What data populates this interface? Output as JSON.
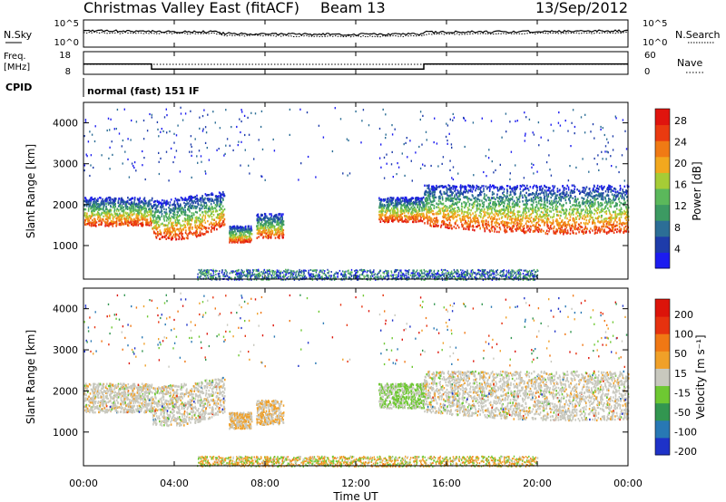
{
  "header": {
    "title": "Christmas Valley East (fitACF)",
    "beam": "Beam 13",
    "date": "13/Sep/2012"
  },
  "nsky_panel": {
    "left_label": "N.Sky",
    "right_label": "N.Search",
    "left_ticks": [
      "10^5",
      "10^0"
    ],
    "right_ticks": [
      "10^5",
      "10^0"
    ]
  },
  "freq_panel": {
    "left_label_1": "Freq.",
    "left_label_2": "[MHz]",
    "right_label": "Nave",
    "left_ticks": [
      "18",
      "8"
    ],
    "right_ticks": [
      "60",
      "0"
    ]
  },
  "cpid": {
    "label": "CPID",
    "value": "normal (fast) 151 IF"
  },
  "x_axis": {
    "title": "Time UT",
    "ticks": [
      "00:00",
      "04:00",
      "08:00",
      "12:00",
      "16:00",
      "20:00",
      "00:00"
    ]
  },
  "power_panel": {
    "ylabel": "Slant Range [km]",
    "yticks": [
      "1000",
      "2000",
      "3000",
      "4000"
    ],
    "colorbar_label": "Power [dB]",
    "colorbar_ticks": [
      "4",
      "8",
      "12",
      "16",
      "20",
      "24",
      "28"
    ],
    "colorbar_colors": [
      "#1c1cf0",
      "#1e3caa",
      "#2c6e96",
      "#3c9a62",
      "#5bb85b",
      "#a6cc36",
      "#f2a81e",
      "#f07a14",
      "#ea3a10",
      "#e0140e"
    ]
  },
  "velocity_panel": {
    "ylabel": "Slant Range [km]",
    "yticks": [
      "1000",
      "2000",
      "3000",
      "4000"
    ],
    "colorbar_label": "Velocity [m s⁻¹]",
    "colorbar_ticks": [
      "200",
      "100",
      "50",
      "15",
      "-15",
      "-50",
      "-100",
      "-200"
    ],
    "colorbar_colors": [
      "#1e32c8",
      "#2878b4",
      "#329650",
      "#6ec832",
      "#c8c8be",
      "#f0a028",
      "#f07814",
      "#e6320f",
      "#dc140a"
    ]
  },
  "chart_data": {
    "type": "heatmap",
    "x_range_hours": [
      0,
      24
    ],
    "y_range_km": [
      180,
      4500
    ],
    "frequency_MHz": {
      "segments": [
        {
          "start_hour": 0,
          "end_hour": 3,
          "value": 14
        },
        {
          "start_hour": 3,
          "end_hour": 15,
          "value": 11
        },
        {
          "start_hour": 15,
          "end_hour": 24,
          "value": 14
        }
      ]
    },
    "scatter_bands": [
      {
        "start_hour": 0.0,
        "end_hour": 3.0,
        "lower_km": 1500,
        "upper_km": 2200
      },
      {
        "start_hour": 3.0,
        "end_hour": 6.2,
        "lower_km": 1200,
        "upper_km": 2100
      },
      {
        "start_hour": 6.4,
        "end_hour": 7.4,
        "lower_km": 1100,
        "upper_km": 1500
      },
      {
        "start_hour": 7.6,
        "end_hour": 8.8,
        "lower_km": 1200,
        "upper_km": 1800
      },
      {
        "start_hour": 13.0,
        "end_hour": 15.0,
        "lower_km": 1600,
        "upper_km": 2200
      },
      {
        "start_hour": 15.0,
        "end_hour": 24.0,
        "lower_km": 1500,
        "upper_km": 2500
      }
    ]
  }
}
